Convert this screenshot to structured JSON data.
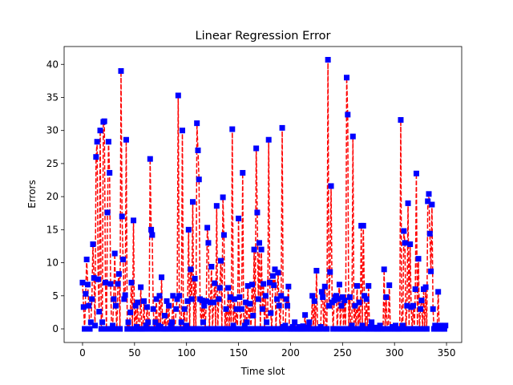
{
  "chart_data": {
    "type": "line",
    "title": "Linear Regression Error",
    "xlabel": "Time slot",
    "ylabel": "Errors",
    "color": "#ff0000",
    "marker_color": "#0000ff",
    "linestyle": "dashed",
    "marker": "square",
    "xlim": [
      -17.7,
      364.6
    ],
    "ylim": [
      -2.06,
      42.7
    ],
    "xticks": [
      0,
      50,
      100,
      150,
      200,
      250,
      300,
      350
    ],
    "yticks": [
      0,
      5,
      10,
      15,
      20,
      25,
      30,
      35,
      40
    ],
    "x": [
      0,
      1,
      2,
      3,
      4,
      5,
      6,
      7,
      8,
      9,
      10,
      11,
      12,
      13,
      14,
      15,
      16,
      17,
      18,
      19,
      20,
      21,
      22,
      23,
      24,
      25,
      26,
      27,
      28,
      29,
      30,
      31,
      32,
      33,
      34,
      35,
      36,
      37,
      38,
      39,
      40,
      41,
      42,
      43,
      44,
      45,
      46,
      47,
      48,
      49,
      50,
      51,
      52,
      53,
      54,
      55,
      56,
      57,
      58,
      59,
      60,
      61,
      62,
      63,
      64,
      65,
      66,
      67,
      68,
      69,
      70,
      71,
      72,
      73,
      74,
      75,
      76,
      77,
      78,
      79,
      80,
      81,
      82,
      83,
      84,
      85,
      86,
      87,
      88,
      89,
      90,
      91,
      92,
      93,
      94,
      95,
      96,
      97,
      98,
      99,
      100,
      101,
      102,
      103,
      104,
      105,
      106,
      107,
      108,
      109,
      110,
      111,
      112,
      113,
      114,
      115,
      116,
      117,
      118,
      119,
      120,
      121,
      122,
      123,
      124,
      125,
      126,
      127,
      128,
      129,
      130,
      131,
      132,
      133,
      134,
      135,
      136,
      137,
      138,
      139,
      140,
      141,
      142,
      143,
      144,
      145,
      146,
      147,
      148,
      149,
      150,
      151,
      152,
      153,
      154,
      155,
      156,
      157,
      158,
      159,
      160,
      161,
      162,
      163,
      164,
      165,
      166,
      167,
      168,
      169,
      170,
      171,
      172,
      173,
      174,
      175,
      176,
      177,
      178,
      179,
      180,
      181,
      182,
      183,
      184,
      185,
      186,
      187,
      188,
      189,
      190,
      191,
      192,
      193,
      194,
      195,
      196,
      197,
      198,
      199,
      200,
      201,
      202,
      203,
      204,
      205,
      206,
      207,
      208,
      209,
      210,
      211,
      212,
      213,
      214,
      215,
      216,
      217,
      218,
      219,
      220,
      221,
      222,
      223,
      224,
      225,
      226,
      227,
      228,
      229,
      230,
      231,
      232,
      233,
      234,
      235,
      236,
      237,
      238,
      239,
      240,
      241,
      242,
      243,
      244,
      245,
      246,
      247,
      248,
      249,
      250,
      251,
      252,
      253,
      254,
      255,
      256,
      257,
      258,
      259,
      260,
      261,
      262,
      263,
      264,
      265,
      266,
      267,
      268,
      269,
      270,
      271,
      272,
      273,
      274,
      275,
      276,
      277,
      278,
      279,
      280,
      281,
      282,
      283,
      284,
      285,
      286,
      287,
      288,
      289,
      290,
      291,
      292,
      293,
      294,
      295,
      296,
      297,
      298,
      299,
      300,
      301,
      302,
      303,
      304,
      305,
      306,
      307,
      308,
      309,
      310,
      311,
      312,
      313,
      314,
      315,
      316,
      317,
      318,
      319,
      320,
      321,
      322,
      323,
      324,
      325,
      326,
      327,
      328,
      329,
      330,
      331,
      332,
      333,
      334,
      335,
      336,
      337,
      338,
      339,
      340,
      341,
      342,
      343,
      344,
      345,
      346,
      347,
      348,
      349
    ],
    "values": [
      7,
      3.3,
      0,
      5.3,
      10.5,
      6.7,
      3.5,
      0,
      1,
      4.5,
      12.8,
      7.7,
      0.5,
      26,
      28.3,
      7.5,
      2.6,
      30,
      0,
      1,
      31.3,
      31.4,
      7,
      0,
      17.6,
      28.3,
      23.6,
      6.8,
      0,
      0.5,
      4.5,
      11.4,
      3.5,
      0,
      6.8,
      8.3,
      0,
      39,
      17,
      10.5,
      4.5,
      5.1,
      28.6,
      0,
      1,
      0,
      2.5,
      7,
      0,
      16.4,
      0,
      3.5,
      0.3,
      4,
      0,
      0,
      6.3,
      0,
      0,
      4.2,
      0,
      0.5,
      3.3,
      1,
      0,
      25.7,
      15,
      14.2,
      3,
      0,
      1,
      4.5,
      0,
      0.5,
      5,
      0.3,
      7.8,
      0,
      0,
      2,
      0,
      4.2,
      0,
      3.5,
      0,
      0.5,
      1,
      5,
      0,
      0,
      3,
      4.5,
      35.3,
      5,
      0,
      1,
      30,
      0,
      3,
      0,
      0.5,
      4.2,
      15,
      0,
      9,
      4.5,
      19.2,
      0,
      7.6,
      0,
      31.1,
      27,
      22.6,
      4.5,
      0,
      4.3,
      1,
      3.5,
      0,
      4.2,
      15.3,
      13,
      0,
      4,
      9.4,
      0,
      4,
      6.9,
      0,
      18.6,
      0,
      4.5,
      6.2,
      10.3,
      0,
      19.9,
      14.2,
      0,
      3,
      0,
      6.2,
      0,
      4.8,
      0,
      30.2,
      0.5,
      4.5,
      0,
      3,
      0,
      16.7,
      4.8,
      0,
      3,
      23.6,
      0,
      0.5,
      4,
      1,
      6.5,
      0,
      3.8,
      0,
      6.7,
      2,
      12,
      0,
      27.3,
      17.6,
      4.5,
      13,
      0,
      12,
      3,
      6.8,
      0,
      5,
      1,
      0,
      28.6,
      7,
      2.4,
      0,
      8,
      6.6,
      9,
      0,
      4.5,
      8.5,
      3.5,
      0,
      5,
      30.4,
      0.3,
      0,
      0.5,
      4.5,
      3.5,
      6.4,
      0,
      0,
      0,
      0.3,
      0,
      1,
      0,
      0,
      0,
      0.3,
      0,
      0,
      0,
      0.4,
      0,
      2.1,
      0,
      0,
      0.2,
      1,
      0,
      0,
      5,
      0,
      4.2,
      0,
      8.8,
      0,
      0,
      0,
      0.3,
      5.6,
      4.8,
      0,
      6.4,
      0,
      0,
      40.7,
      3.5,
      8.6,
      21.6,
      4,
      0,
      4.3,
      4.8,
      5,
      0,
      4.5,
      6.7,
      0,
      3.5,
      4.8,
      0,
      4.3,
      0,
      38,
      32.4,
      0,
      4.8,
      0,
      0.5,
      29.1,
      0,
      3.5,
      0,
      6.5,
      0,
      4,
      0,
      15.6,
      0.5,
      15.6,
      5,
      0,
      4.5,
      0,
      6.5,
      0,
      0.3,
      1,
      0,
      0,
      0.2,
      0,
      0,
      0,
      0,
      0.5,
      0,
      0,
      0,
      9,
      0,
      4.8,
      0,
      0,
      6.6,
      0,
      0,
      0.3,
      0,
      0,
      0.5,
      0,
      0,
      0,
      0,
      31.6,
      0,
      0.5,
      14.8,
      13,
      0,
      3.5,
      19,
      0,
      12.8,
      3.3,
      0,
      3.5,
      0,
      6,
      23.5,
      0,
      10.6,
      0,
      3,
      4.3,
      0,
      6,
      0,
      6.3,
      0,
      19.3,
      20.4,
      14.4,
      8.7,
      18.8,
      3,
      0,
      0.5,
      0,
      0,
      5.6,
      0,
      0.5,
      0,
      0,
      0,
      0,
      0.5
    ]
  }
}
